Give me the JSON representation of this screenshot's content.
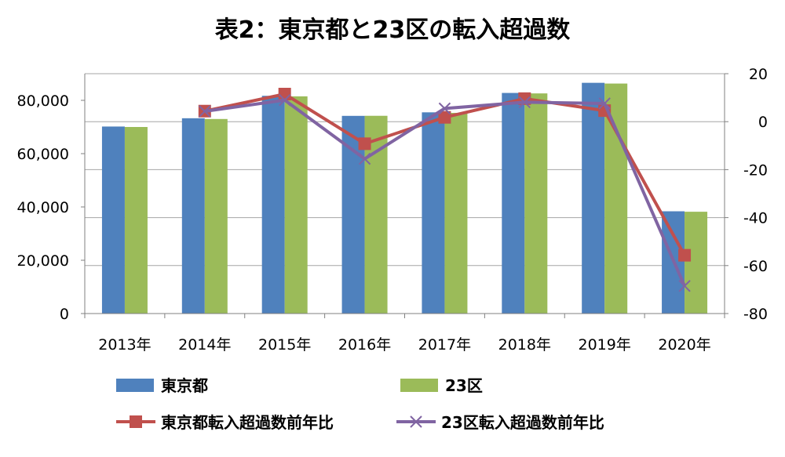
{
  "chart_data": {
    "type": "bar",
    "title": "表2：東京都と23区の転入超過数",
    "categories": [
      "2013年",
      "2014年",
      "2015年",
      "2016年",
      "2017年",
      "2018年",
      "2019年",
      "2020年"
    ],
    "series": [
      {
        "name": "東京都",
        "type": "bar",
        "axis": "left",
        "color": "#4F81BD",
        "values": [
          70172,
          73280,
          81696,
          74177,
          75498,
          82774,
          86575,
          38374
        ]
      },
      {
        "name": "23区",
        "type": "bar",
        "axis": "left",
        "color": "#9BBB59",
        "values": [
          70000,
          73000,
          81500,
          74200,
          75300,
          82600,
          86300,
          38200
        ]
      },
      {
        "name": "東京都転入超過数前年比",
        "type": "line",
        "axis": "right",
        "color": "#C0504D",
        "marker": "square",
        "values": [
          null,
          4.4,
          11.5,
          -9.2,
          1.8,
          9.6,
          4.6,
          -55.7
        ]
      },
      {
        "name": "23区転入超過数前年比",
        "type": "line",
        "axis": "right",
        "color": "#8064A2",
        "marker": "x",
        "values": [
          null,
          4.3,
          9.0,
          -15.5,
          5.5,
          8.1,
          7.6,
          -68.5
        ]
      }
    ],
    "y_left": {
      "min": 0,
      "max": 90000,
      "ticks": [
        0,
        20000,
        40000,
        60000,
        80000
      ],
      "tick_labels": [
        "0",
        "20,000",
        "40,000",
        "60,000",
        "80,000"
      ]
    },
    "y_right": {
      "min": -80,
      "max": 20,
      "ticks": [
        -80,
        -60,
        -40,
        -20,
        0,
        20
      ],
      "tick_labels": [
        "-80",
        "-60",
        "-40",
        "-20",
        "0",
        "20"
      ]
    },
    "grid": true,
    "legend_position": "bottom"
  }
}
